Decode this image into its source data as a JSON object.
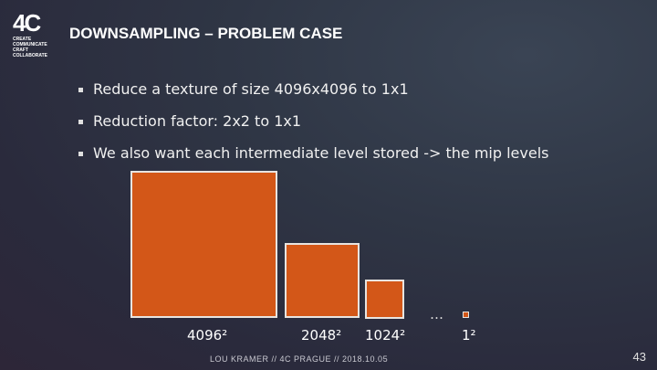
{
  "logo": {
    "mark": "4C",
    "lines": [
      "CREATE",
      "COMMUNICATE",
      "CRAFT",
      "COLLABORATE"
    ]
  },
  "slide": {
    "title": "DOWNSAMPLING – PROBLEM CASE",
    "bullets": [
      "Reduce a texture of size 4096x4096 to 1x1",
      "Reduction factor: 2x2 to 1x1",
      "We also want each intermediate level stored -> the mip levels"
    ],
    "mip_labels": [
      "4096²",
      "2048²",
      "1024²",
      "1²"
    ],
    "ellipsis": "…",
    "footer": "LOU KRAMER // 4C PRAGUE // 2018.10.05",
    "page_number": "43"
  },
  "colors": {
    "accent": "#d35718",
    "title": "#ffffff"
  }
}
